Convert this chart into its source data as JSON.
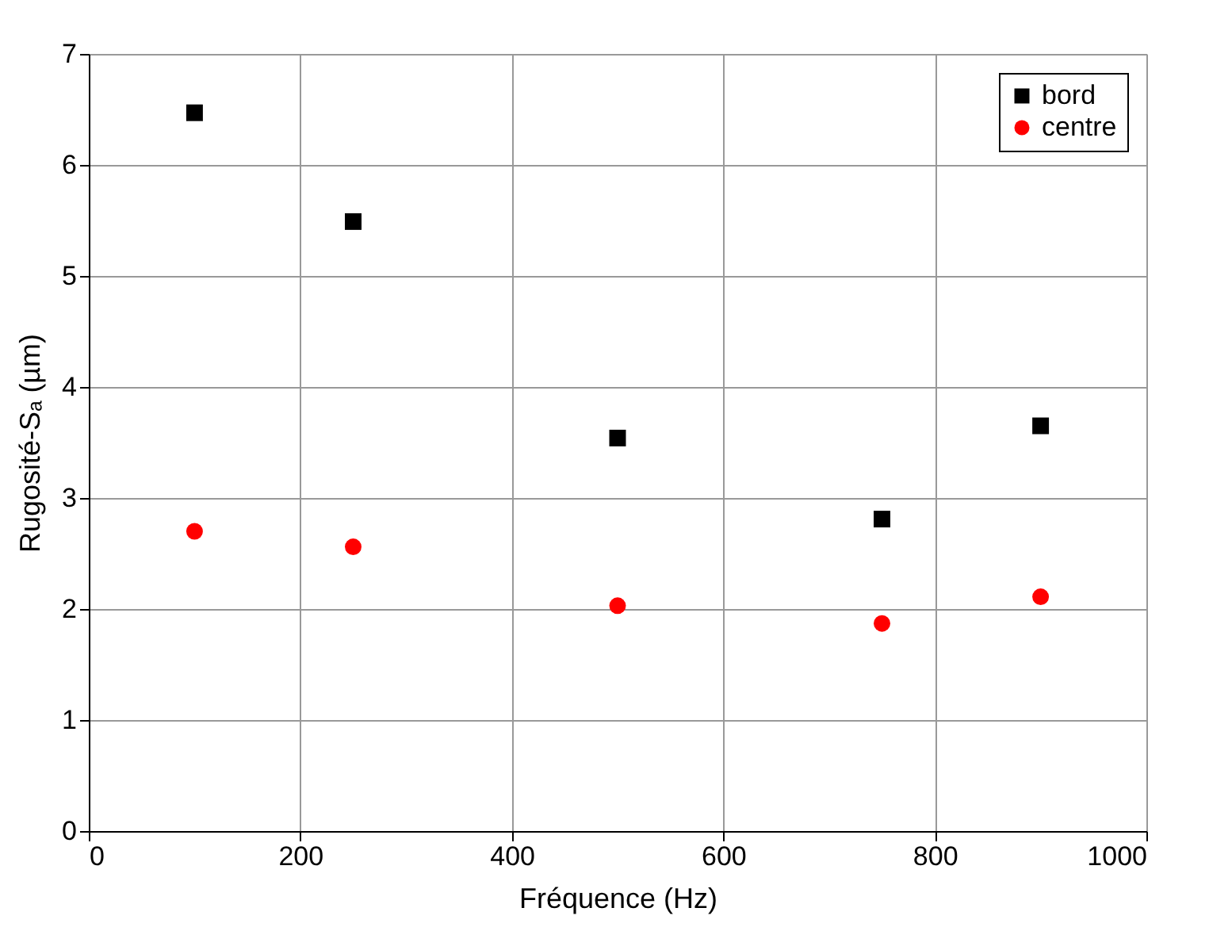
{
  "chart_data": {
    "type": "scatter",
    "xlabel": "Fréquence (Hz)",
    "ylabel": "Rugosité-Sₐ (µm)",
    "x": [
      100,
      250,
      500,
      750,
      900
    ],
    "series": [
      {
        "name": "bord",
        "color": "#000000",
        "marker": "square",
        "values": [
          6.47,
          5.49,
          3.54,
          2.81,
          3.65
        ]
      },
      {
        "name": "centre",
        "color": "#ff0000",
        "marker": "circle",
        "values": [
          2.7,
          2.56,
          2.03,
          1.87,
          2.11
        ]
      }
    ],
    "xlim": [
      0,
      1000
    ],
    "xticks": [
      0,
      200,
      400,
      600,
      800,
      1000
    ],
    "ylim": [
      0,
      7
    ],
    "yticks": [
      0,
      1,
      2,
      3,
      4,
      5,
      6,
      7
    ],
    "grid": true,
    "legend": "top right"
  }
}
